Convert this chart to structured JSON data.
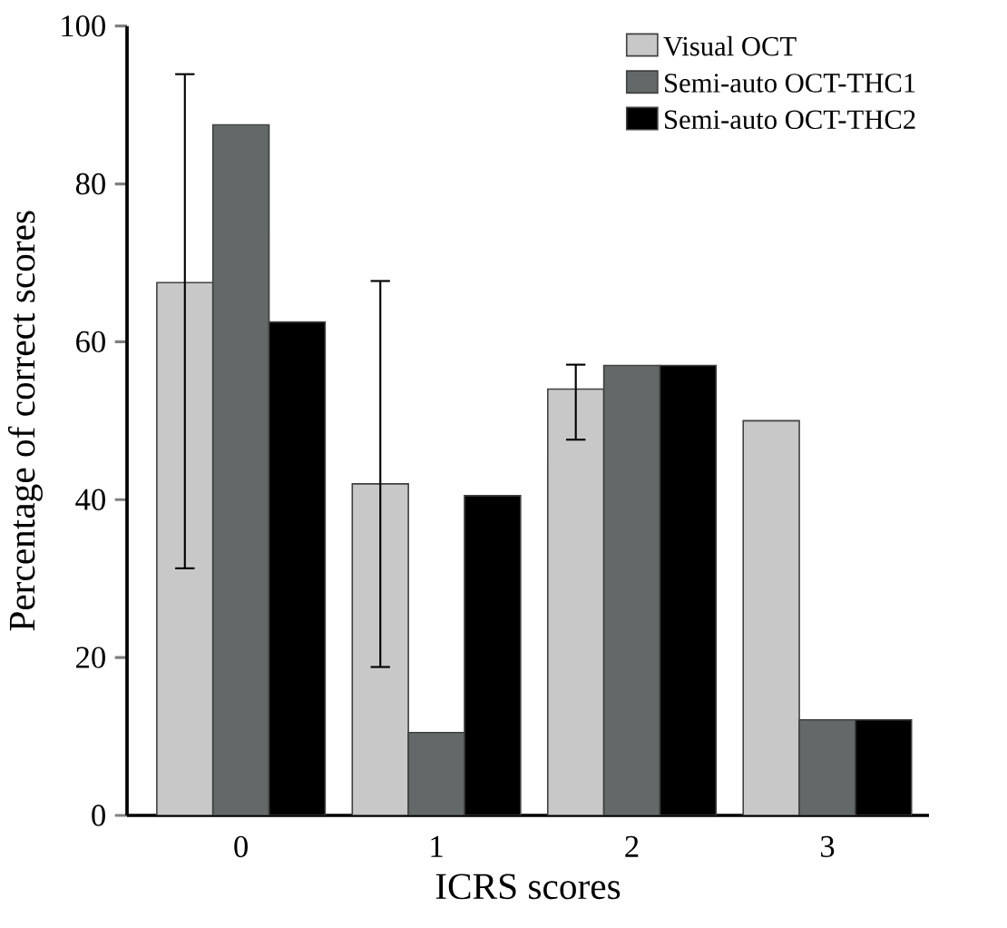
{
  "chart_data": {
    "type": "bar",
    "xlabel": "ICRS scores",
    "ylabel": "Percentage of correct scores",
    "categories": [
      "0",
      "1",
      "2",
      "3"
    ],
    "series": [
      {
        "name": "Visual OCT",
        "color": "#c8c8c8",
        "values": [
          67.5,
          42,
          54,
          50
        ],
        "errors": [
          [
            31.3,
            93.9
          ],
          [
            18.8,
            67.7
          ],
          [
            47.6,
            57.1
          ],
          null
        ]
      },
      {
        "name": "Semi-auto OCT-THC1",
        "color": "#636868",
        "values": [
          87.5,
          10.5,
          57,
          12.1
        ]
      },
      {
        "name": "Semi-auto OCT-THC2",
        "color": "#000000",
        "values": [
          62.5,
          40.5,
          57,
          12.1
        ]
      }
    ],
    "ylim": [
      0,
      100
    ],
    "yticks": [
      0,
      20,
      40,
      60,
      80,
      100
    ],
    "legend": "top right",
    "grid": false
  }
}
